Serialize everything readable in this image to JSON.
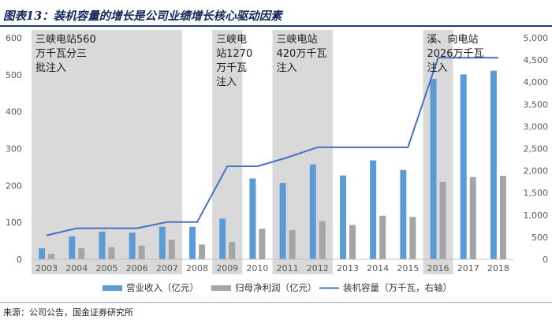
{
  "title": "图表13：装机容量的增长是公司业绩增长核心驱动因素",
  "source": "来源：公司公告，国金证券研究所",
  "colors": {
    "revenue": "#5b9bd5",
    "profit": "#a5a5a5",
    "capacity": "#4472c4",
    "shade": "#d9d9d9",
    "axis_text": "#595959"
  },
  "chart_data": {
    "type": "bar",
    "categories": [
      "2003",
      "2004",
      "2005",
      "2006",
      "2007",
      "2008",
      "2009",
      "2010",
      "2011",
      "2012",
      "2013",
      "2014",
      "2015",
      "2016",
      "2017",
      "2018"
    ],
    "series": [
      {
        "name": "营业收入（亿元）",
        "type": "bar",
        "axis": "left",
        "values": [
          30,
          62,
          75,
          72,
          88,
          88,
          110,
          219,
          207,
          257,
          227,
          268,
          242,
          489,
          501,
          511
        ]
      },
      {
        "name": "归母净利润（亿元）",
        "type": "bar",
        "axis": "left",
        "values": [
          15,
          30,
          33,
          37,
          53,
          40,
          47,
          83,
          79,
          104,
          93,
          118,
          115,
          209,
          223,
          226
        ]
      },
      {
        "name": "装机容量（万千瓦，右轴）",
        "type": "line",
        "axis": "right",
        "values": [
          540,
          700,
          700,
          700,
          840,
          840,
          2100,
          2100,
          2300,
          2530,
          2530,
          2530,
          2530,
          4550,
          4550,
          4550
        ]
      }
    ],
    "left_axis": {
      "min": 0,
      "max": 600,
      "ticks": [
        "0",
        "100",
        "200",
        "300",
        "400",
        "500",
        "600"
      ]
    },
    "right_axis": {
      "min": 0,
      "max": 5000,
      "ticks": [
        "0",
        "500",
        "1,000",
        "1,500",
        "2,000",
        "2,500",
        "3,000",
        "3,500",
        "4,000",
        "4,500",
        "5,000"
      ]
    },
    "shaded_periods": [
      {
        "from": "2003",
        "to": "2007",
        "lines": [
          "三峡电站560",
          "万千瓦分三",
          "批注入"
        ]
      },
      {
        "from": "2009",
        "to": "2009",
        "lines": [
          "三峡电",
          "站1270",
          "万千瓦",
          "注入"
        ]
      },
      {
        "from": "2011",
        "to": "2012",
        "lines": [
          "三峡电站",
          "420万千瓦",
          "注入"
        ]
      },
      {
        "from": "2016",
        "to": "2016",
        "lines": [
          "溪、向电站",
          "2026万千瓦",
          "注入"
        ]
      }
    ],
    "legend": [
      "营业收入（亿元）",
      "归母净利润（亿元）",
      "装机容量（万千瓦，右轴）"
    ],
    "legend_position": "bottom"
  }
}
